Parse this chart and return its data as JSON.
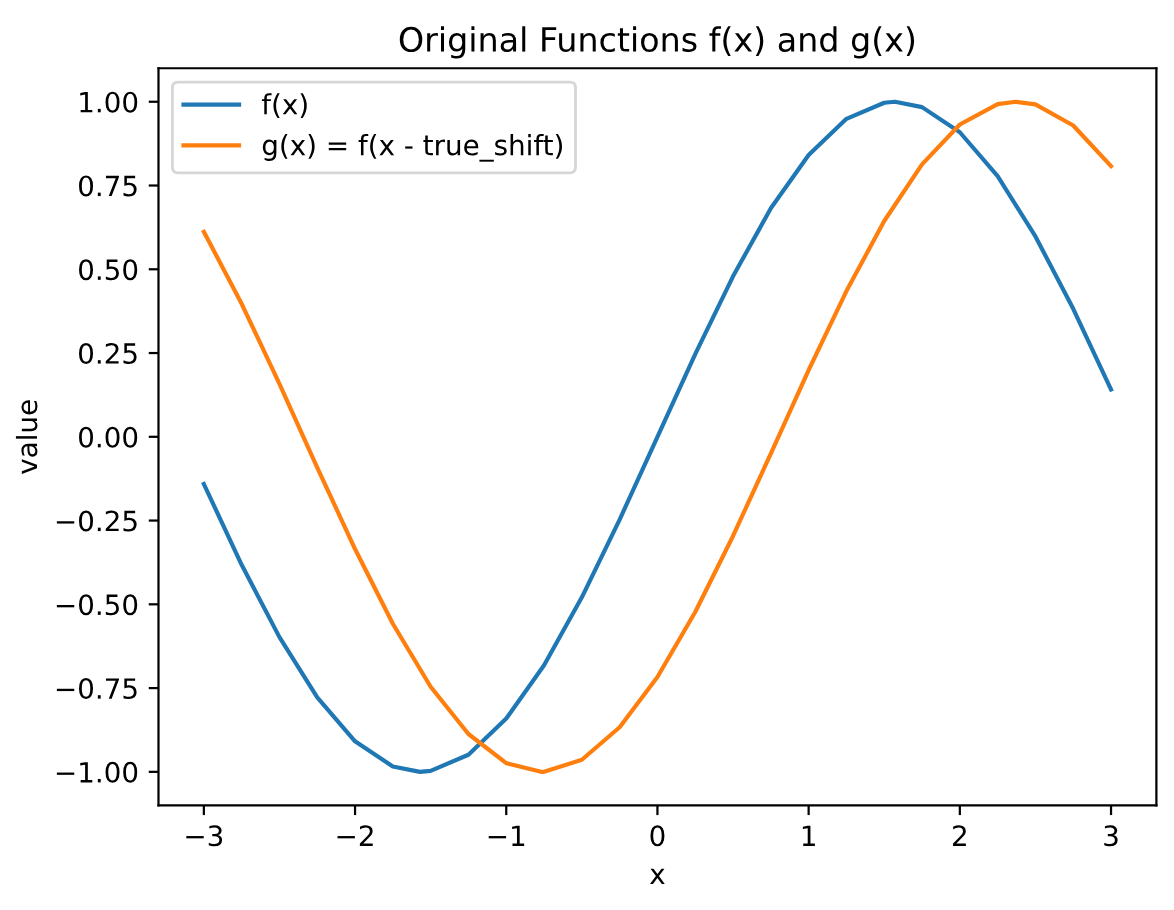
{
  "chart_data": {
    "type": "line",
    "title": "Original Functions f(x) and g(x)",
    "xlabel": "x",
    "ylabel": "value",
    "series": [
      {
        "name": "f(x)",
        "color": "#1f77b4",
        "x": [
          -3,
          -2.75,
          -2.5,
          -2.25,
          -2,
          -1.75,
          -1.5708,
          -1.5,
          -1.25,
          -1,
          -0.75,
          -0.5,
          -0.25,
          0,
          0.25,
          0.5,
          0.75,
          1,
          1.25,
          1.5,
          1.5708,
          1.75,
          2,
          2.25,
          2.5,
          2.75,
          3
        ],
        "values": [
          -0.141,
          -0.382,
          -0.598,
          -0.778,
          -0.909,
          -0.984,
          -1.0,
          -0.997,
          -0.949,
          -0.841,
          -0.682,
          -0.479,
          -0.247,
          0.0,
          0.247,
          0.479,
          0.682,
          0.841,
          0.949,
          0.997,
          1.0,
          0.984,
          0.909,
          0.778,
          0.598,
          0.382,
          0.141
        ]
      },
      {
        "name": "g(x) = f(x - true_shift)",
        "color": "#ff7f0e",
        "x": [
          -3,
          -2.75,
          -2.5,
          -2.25,
          -2,
          -1.75,
          -1.5,
          -1.25,
          -1,
          -0.77,
          -0.75,
          -0.5,
          -0.25,
          0,
          0.25,
          0.5,
          0.75,
          1,
          1.25,
          1.5,
          1.75,
          2,
          2.25,
          2.37,
          2.5,
          2.75,
          3
        ],
        "values": [
          0.612,
          0.397,
          0.158,
          -0.092,
          -0.335,
          -0.558,
          -0.746,
          -0.887,
          -0.974,
          -1.0,
          -1.0,
          -0.964,
          -0.867,
          -0.717,
          -0.523,
          -0.296,
          -0.05,
          0.199,
          0.435,
          0.644,
          0.813,
          0.932,
          0.993,
          1.0,
          0.992,
          0.929,
          0.808
        ]
      }
    ],
    "xlim": [
      -3.3,
      3.3
    ],
    "ylim": [
      -1.1,
      1.1
    ],
    "xticks": [
      {
        "value": -3,
        "label": "−3"
      },
      {
        "value": -2,
        "label": "−2"
      },
      {
        "value": -1,
        "label": "−1"
      },
      0,
      1,
      2,
      3
    ],
    "yticks": [
      {
        "value": -1,
        "label": "−1.00"
      },
      {
        "value": -0.75,
        "label": "−0.75"
      },
      {
        "value": -0.5,
        "label": "−0.50"
      },
      {
        "value": -0.25,
        "label": "−0.25"
      },
      {
        "value": 0,
        "label": "0.00"
      },
      {
        "value": 0.25,
        "label": "0.25"
      },
      {
        "value": 0.5,
        "label": "0.50"
      },
      {
        "value": 0.75,
        "label": "0.75"
      },
      {
        "value": 1,
        "label": "1.00"
      }
    ],
    "legend": "top left",
    "grid": false
  }
}
